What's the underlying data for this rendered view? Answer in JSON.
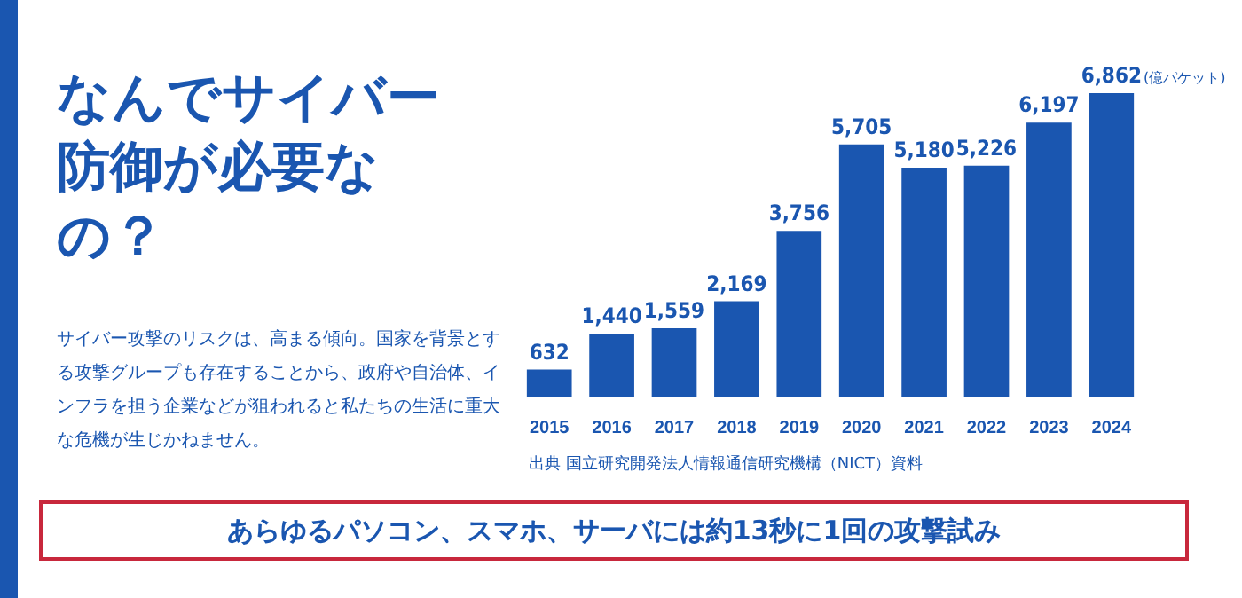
{
  "chart_data": {
    "type": "bar",
    "title": "なんでサイバー防御が必要なの？",
    "ylabel": "(億パケット)",
    "categories": [
      "2015",
      "2016",
      "2017",
      "2018",
      "2019",
      "2020",
      "2021",
      "2022",
      "2023",
      "2024"
    ],
    "values": [
      632,
      1440,
      1559,
      2169,
      3756,
      5705,
      5180,
      5226,
      6197,
      6862
    ],
    "value_labels": [
      "632",
      "1,440",
      "1,559",
      "2,169",
      "3,756",
      "5,705",
      "5,180",
      "5,226",
      "6,197",
      "6,862"
    ],
    "color": "#1a56b0",
    "tick_labels": "x",
    "grid": false,
    "legend": false,
    "annotations": [
      "サイバー攻撃のリスクは、高まる傾向。国家を背景とする攻撃グループも存在することから、政府や自治体、インフラを担う企業などが狙われると私たちの生活に重大な危機が生じかねません。",
      "出典 国立研究開発法人情報通信研究機構（NICT）資料",
      "あらゆるパソコン、スマホ、サーバには約13秒に1回の攻撃試み"
    ]
  }
}
